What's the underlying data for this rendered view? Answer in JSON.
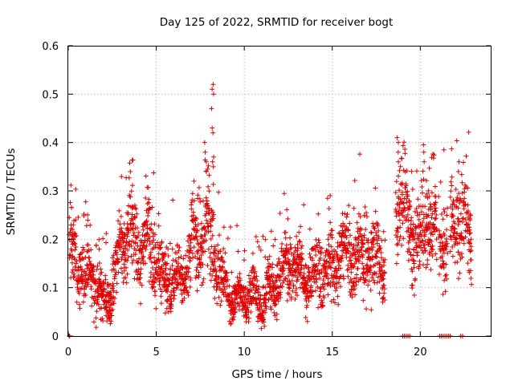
{
  "chart_data": {
    "type": "scatter",
    "title": "Day 125 of 2022, SRMTID for receiver bogt",
    "xlabel": "GPS time / hours",
    "ylabel": "SRMTID / TECUs",
    "xlim": [
      0,
      24
    ],
    "ylim": [
      0,
      0.6
    ],
    "xticks": [
      0,
      5,
      10,
      15,
      20
    ],
    "yticks": [
      0,
      0.1,
      0.2,
      0.3,
      0.4,
      0.5,
      0.6
    ],
    "xtick_labels": [
      "0",
      "5",
      "10",
      "15",
      "20"
    ],
    "ytick_labels": [
      "0",
      "0.1",
      "0.2",
      "0.3",
      "0.4",
      "0.5",
      "0.6"
    ],
    "grid": true,
    "marker": "+",
    "color": "#e00000",
    "trend": [
      [
        0.1,
        0.16
      ],
      [
        0.5,
        0.14
      ],
      [
        1.0,
        0.1
      ],
      [
        1.5,
        0.12
      ],
      [
        2.0,
        0.08
      ],
      [
        2.5,
        0.12
      ],
      [
        3.0,
        0.18
      ],
      [
        3.5,
        0.2
      ],
      [
        4.0,
        0.15
      ],
      [
        4.5,
        0.2
      ],
      [
        5.0,
        0.18
      ],
      [
        5.5,
        0.13
      ],
      [
        6.0,
        0.12
      ],
      [
        6.5,
        0.1
      ],
      [
        7.0,
        0.17
      ],
      [
        7.5,
        0.2
      ],
      [
        8.0,
        0.26
      ],
      [
        8.3,
        0.2
      ],
      [
        8.7,
        0.12
      ],
      [
        9.2,
        0.07
      ],
      [
        9.7,
        0.05
      ],
      [
        10.2,
        0.08
      ],
      [
        10.8,
        0.09
      ],
      [
        11.5,
        0.11
      ],
      [
        12.2,
        0.13
      ],
      [
        13.0,
        0.12
      ],
      [
        13.7,
        0.13
      ],
      [
        14.3,
        0.15
      ],
      [
        15.0,
        0.14
      ],
      [
        15.6,
        0.15
      ],
      [
        16.2,
        0.15
      ],
      [
        16.8,
        0.18
      ],
      [
        17.4,
        0.19
      ],
      [
        18.0,
        0.15
      ],
      [
        18.5,
        0.22
      ],
      [
        19.0,
        0.27
      ],
      [
        19.5,
        0.21
      ],
      [
        20.0,
        0.22
      ],
      [
        20.4,
        0.27
      ],
      [
        20.8,
        0.24
      ],
      [
        21.2,
        0.18
      ],
      [
        21.6,
        0.2
      ],
      [
        22.0,
        0.22
      ],
      [
        22.4,
        0.24
      ],
      [
        22.8,
        0.2
      ]
    ],
    "spikes": [
      {
        "x": 8.2,
        "values": [
          0.52,
          0.51,
          0.5,
          0.47,
          0.43,
          0.42,
          0.37,
          0.36,
          0.35
        ]
      },
      {
        "x": 7.8,
        "values": [
          0.4,
          0.38,
          0.36,
          0.34
        ]
      },
      {
        "x": 18.7,
        "values": [
          0.41,
          0.4,
          0.38,
          0.36
        ]
      },
      {
        "x": 20.2,
        "values": [
          0.395,
          0.38,
          0.36
        ]
      },
      {
        "x": 21.3,
        "values": [
          0.385
        ]
      },
      {
        "x": 22.2,
        "values": [
          0.36,
          0.34
        ]
      }
    ],
    "zeros": [
      0.05,
      0.08,
      19.0,
      19.1,
      19.2,
      19.3,
      19.4,
      21.1,
      21.2,
      21.3,
      21.4,
      21.5,
      21.6,
      21.7,
      22.3,
      22.4
    ],
    "gaps": [
      [
        18.6,
        18.0
      ],
      [
        21.05,
        20.95
      ],
      [
        21.7,
        21.55
      ],
      [
        22.9,
        23.0
      ]
    ]
  }
}
